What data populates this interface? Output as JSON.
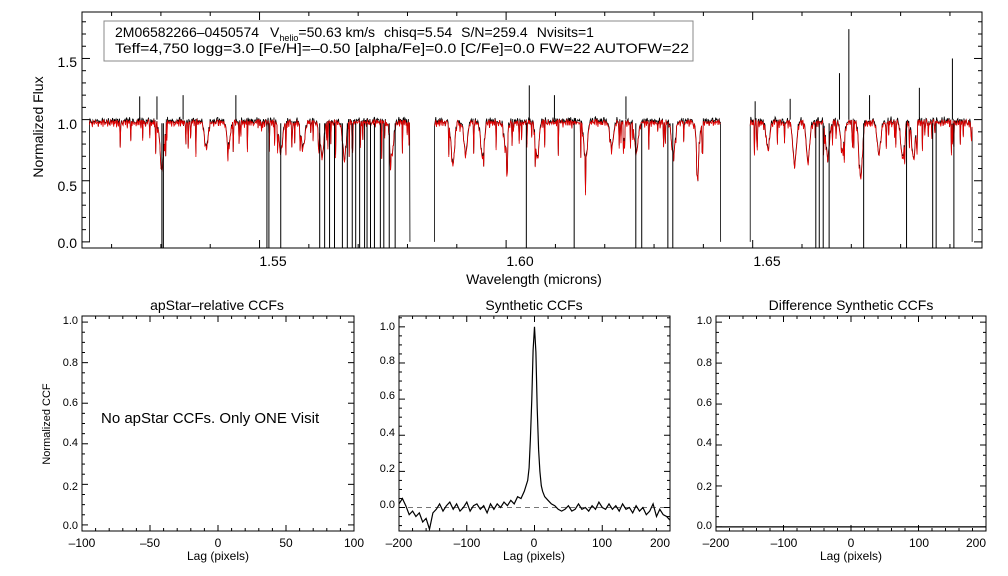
{
  "chart_data": [
    {
      "type": "line",
      "id": "spectrum",
      "title": "",
      "xlabel": "Wavelength (microns)",
      "ylabel": "Normalized Flux",
      "xlim": [
        1.514,
        1.6965
      ],
      "ylim": [
        -0.05,
        1.88
      ],
      "xticks": [
        1.55,
        1.6,
        1.65
      ],
      "xtick_labels": [
        "1.55",
        "1.60",
        "1.65"
      ],
      "yticks": [
        0.0,
        0.5,
        1.0,
        1.5
      ],
      "ytick_labels": [
        "0.0",
        "0.5",
        "1.0",
        "1.5"
      ],
      "chips": [
        [
          1.5155,
          1.5805
        ],
        [
          1.5855,
          1.6435
        ],
        [
          1.6495,
          1.6945
        ]
      ],
      "continuum_level": 1.0,
      "info_line1": {
        "star": "2M06582266–0450574",
        "v_label": "V",
        "v_sub": "helio",
        "v_value": "=50.63 km/s",
        "chisq": "chisq=5.54",
        "snr": "S/N=259.4",
        "nvisits": "Nvisits=1"
      },
      "info_line2": "Teff=4,750 logg=3.0 [Fe/H]=–0.50 [alpha/Fe]=0.0 [C/Fe]=0.0 FW=22 AUTOFW=22",
      "series": [
        {
          "name": "observed",
          "color": "#000000"
        },
        {
          "name": "model",
          "color": "#e00000"
        }
      ],
      "emission_spikes": [
        {
          "x": 1.5257,
          "y": 1.19
        },
        {
          "x": 1.5292,
          "y": 1.19
        },
        {
          "x": 1.5345,
          "y": 1.2
        },
        {
          "x": 1.5452,
          "y": 1.2
        },
        {
          "x": 1.6047,
          "y": 1.28
        },
        {
          "x": 1.6098,
          "y": 1.2
        },
        {
          "x": 1.6243,
          "y": 1.19
        },
        {
          "x": 1.6505,
          "y": 1.15
        },
        {
          "x": 1.6576,
          "y": 1.17
        },
        {
          "x": 1.6676,
          "y": 1.38
        },
        {
          "x": 1.6695,
          "y": 1.74
        },
        {
          "x": 1.6737,
          "y": 1.2
        },
        {
          "x": 1.6838,
          "y": 1.26
        },
        {
          "x": 1.6905,
          "y": 1.5
        }
      ],
      "bad_pixel_drops": [
        1.5302,
        1.5305,
        1.5515,
        1.5519,
        1.5543,
        1.5622,
        1.5632,
        1.5642,
        1.5652,
        1.5668,
        1.5678,
        1.5688,
        1.5695,
        1.5703,
        1.5713,
        1.5718,
        1.5725,
        1.5733,
        1.5745,
        1.5752,
        1.5763,
        1.5775,
        1.6041,
        1.6138,
        1.6263,
        1.6275,
        1.6328,
        1.6338,
        1.6628,
        1.6635,
        1.6643,
        1.6655,
        1.6725,
        1.6812,
        1.6865,
        1.6872,
        1.6908
      ],
      "absorption_lines": [
        {
          "x": 1.5302,
          "depth": 0.4
        },
        {
          "x": 1.5392,
          "depth": 0.22
        },
        {
          "x": 1.5437,
          "depth": 0.2
        },
        {
          "x": 1.5543,
          "depth": 0.25
        },
        {
          "x": 1.5588,
          "depth": 0.22
        },
        {
          "x": 1.5627,
          "depth": 0.28
        },
        {
          "x": 1.5672,
          "depth": 0.3
        },
        {
          "x": 1.5768,
          "depth": 0.28
        },
        {
          "x": 1.5892,
          "depth": 0.35
        },
        {
          "x": 1.5918,
          "depth": 0.26
        },
        {
          "x": 1.5952,
          "depth": 0.3
        },
        {
          "x": 1.5999,
          "depth": 0.22
        },
        {
          "x": 1.6063,
          "depth": 0.3
        },
        {
          "x": 1.6161,
          "depth": 0.32
        },
        {
          "x": 1.6214,
          "depth": 0.22
        },
        {
          "x": 1.6264,
          "depth": 0.25
        },
        {
          "x": 1.6339,
          "depth": 0.28
        },
        {
          "x": 1.6389,
          "depth": 0.25
        },
        {
          "x": 1.6531,
          "depth": 0.22
        },
        {
          "x": 1.6585,
          "depth": 0.35
        },
        {
          "x": 1.6612,
          "depth": 0.32
        },
        {
          "x": 1.6652,
          "depth": 0.3
        },
        {
          "x": 1.6682,
          "depth": 0.25
        },
        {
          "x": 1.6719,
          "depth": 0.45
        },
        {
          "x": 1.6756,
          "depth": 0.26
        },
        {
          "x": 1.6804,
          "depth": 0.3
        },
        {
          "x": 1.6826,
          "depth": 0.3
        }
      ]
    },
    {
      "type": "line",
      "id": "apstar",
      "title": "apStar–relative CCFs",
      "xlabel": "Lag (pixels)",
      "ylabel": "Normalized CCF",
      "xlim": [
        -100,
        100
      ],
      "ylim": [
        -0.03,
        1.03
      ],
      "xticks": [
        -100,
        -50,
        0,
        50,
        100
      ],
      "xtick_labels": [
        "–100",
        "–50",
        "0",
        "50",
        "100"
      ],
      "yticks": [
        0.0,
        0.2,
        0.4,
        0.6,
        0.8,
        1.0
      ],
      "ytick_labels": [
        "0.0",
        "0.2",
        "0.4",
        "0.6",
        "0.8",
        "1.0"
      ],
      "message": "No apStar CCFs.  Only ONE Visit",
      "series": []
    },
    {
      "type": "line",
      "id": "synthetic",
      "title": "Synthetic CCFs",
      "xlabel": "Lag (pixels)",
      "ylabel": "",
      "xlim": [
        -200,
        200
      ],
      "ylim": [
        -0.13,
        1.06
      ],
      "xticks": [
        -200,
        -100,
        0,
        100,
        200
      ],
      "xtick_labels": [
        "–200",
        "–100",
        "0",
        "100",
        "200"
      ],
      "yticks": [
        0.0,
        0.2,
        0.4,
        0.6,
        0.8,
        1.0
      ],
      "ytick_labels": [
        "0.0",
        "0.2",
        "0.4",
        "0.6",
        "0.8",
        "1.0"
      ],
      "reference_line": 0.0,
      "series": [
        {
          "name": "ccf",
          "color": "#000000",
          "x": [
            -200,
            -195,
            -190,
            -185,
            -180,
            -175,
            -170,
            -165,
            -160,
            -155,
            -150,
            -145,
            -140,
            -135,
            -130,
            -125,
            -120,
            -115,
            -110,
            -105,
            -100,
            -95,
            -90,
            -85,
            -80,
            -75,
            -70,
            -65,
            -60,
            -55,
            -50,
            -45,
            -40,
            -35,
            -30,
            -25,
            -20,
            -15,
            -10,
            -8,
            -6,
            -4,
            -2,
            0,
            2,
            4,
            6,
            8,
            10,
            12,
            15,
            20,
            25,
            30,
            35,
            40,
            45,
            50,
            55,
            60,
            65,
            70,
            75,
            80,
            85,
            90,
            95,
            100,
            105,
            110,
            115,
            120,
            125,
            130,
            135,
            140,
            145,
            150,
            155,
            160,
            165,
            170,
            175,
            180,
            185,
            190,
            195,
            200
          ],
          "y": [
            0.02,
            0.05,
            0.01,
            -0.04,
            -0.02,
            -0.05,
            -0.03,
            -0.08,
            -0.06,
            -0.12,
            -0.03,
            -0.01,
            0.02,
            -0.02,
            0.01,
            0.03,
            -0.01,
            0.02,
            -0.02,
            0.0,
            0.03,
            -0.02,
            0.01,
            0.02,
            -0.01,
            0.01,
            -0.03,
            0.02,
            -0.01,
            0.02,
            0.0,
            0.03,
            0.01,
            0.04,
            0.02,
            0.06,
            0.05,
            0.09,
            0.15,
            0.22,
            0.38,
            0.6,
            0.87,
            1.0,
            0.86,
            0.55,
            0.32,
            0.2,
            0.12,
            0.09,
            0.06,
            0.04,
            0.02,
            0.01,
            -0.01,
            -0.02,
            -0.01,
            0.01,
            -0.02,
            -0.01,
            0.02,
            -0.01,
            0.0,
            -0.02,
            0.01,
            -0.01,
            0.03,
            0.0,
            -0.01,
            0.02,
            -0.01,
            0.01,
            -0.02,
            0.02,
            -0.01,
            0.0,
            -0.03,
            0.01,
            -0.02,
            0.0,
            -0.04,
            -0.02,
            0.02,
            -0.05,
            -0.01,
            -0.04,
            -0.05,
            -0.07
          ]
        }
      ]
    },
    {
      "type": "line",
      "id": "difference",
      "title": "Difference Synthetic CCFs",
      "xlabel": "Lag (pixels)",
      "ylabel": "",
      "xlim": [
        -200,
        200
      ],
      "ylim": [
        -0.02,
        1.03
      ],
      "xticks": [
        -200,
        -100,
        0,
        100,
        200
      ],
      "xtick_labels": [
        "–200",
        "–100",
        "0",
        "100",
        "200"
      ],
      "yticks": [
        0.0,
        0.2,
        0.4,
        0.6,
        0.8,
        1.0
      ],
      "ytick_labels": [
        "0.0",
        "0.2",
        "0.4",
        "0.6",
        "0.8",
        "1.0"
      ],
      "series": [
        {
          "name": "difference",
          "color": "#000000",
          "x": [
            -200,
            200
          ],
          "y": [
            0.0,
            0.0
          ]
        }
      ]
    }
  ]
}
